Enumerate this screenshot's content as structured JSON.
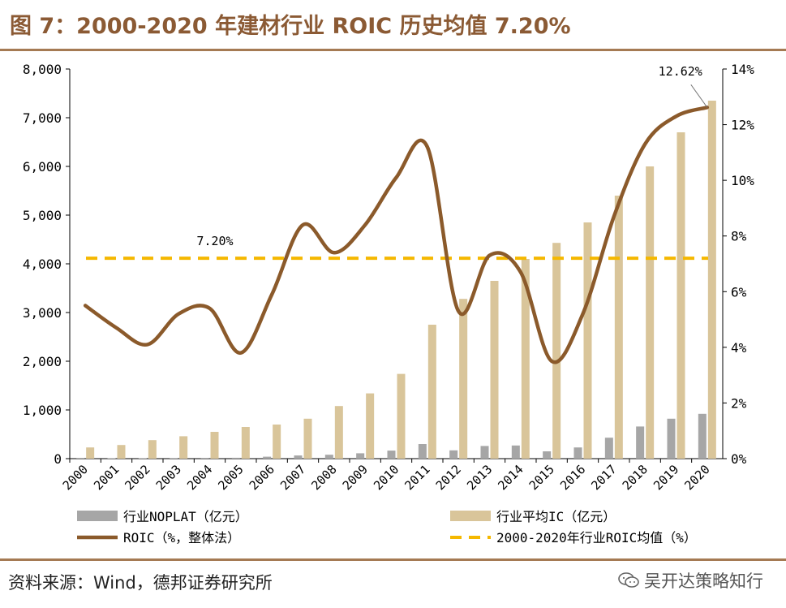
{
  "title": "图 7：2000-2020 年建材行业 ROIC 历史均值 7.20%",
  "footer": {
    "source": "资料来源：Wind，德邦证券研究所",
    "watermark": "吴开达策略知行"
  },
  "colors": {
    "nopat": "#a6a6a6",
    "ic": "#d9c59a",
    "roic": "#8b5a2b",
    "avg": "#f5b800",
    "rule": "#a57a53"
  },
  "chart_data": {
    "type": "bar+line",
    "categories": [
      "2000",
      "2001",
      "2002",
      "2003",
      "2004",
      "2005",
      "2006",
      "2007",
      "2008",
      "2009",
      "2010",
      "2011",
      "2012",
      "2013",
      "2014",
      "2015",
      "2016",
      "2017",
      "2018",
      "2019",
      "2020"
    ],
    "series": [
      {
        "name": "行业NOPLAT（亿元）",
        "axis": "left",
        "type": "bar",
        "values": [
          5,
          8,
          10,
          12,
          15,
          18,
          40,
          65,
          80,
          110,
          165,
          300,
          170,
          260,
          270,
          150,
          230,
          430,
          660,
          820,
          920
        ]
      },
      {
        "name": "行业平均IC（亿元）",
        "axis": "left",
        "type": "bar",
        "values": [
          230,
          280,
          380,
          460,
          550,
          650,
          700,
          820,
          1080,
          1340,
          1740,
          2750,
          3280,
          3650,
          4100,
          4430,
          4850,
          5400,
          6000,
          6700,
          7350
        ]
      },
      {
        "name": "ROIC（%，整体法）",
        "axis": "right",
        "type": "line",
        "values": [
          5.5,
          4.7,
          4.1,
          5.2,
          5.4,
          3.8,
          5.9,
          8.4,
          7.4,
          8.4,
          10.1,
          11.2,
          5.3,
          7.3,
          6.7,
          3.5,
          5.2,
          8.7,
          11.3,
          12.3,
          12.62
        ]
      },
      {
        "name": "2000-2020年行业ROIC均值（%）",
        "axis": "right",
        "type": "dashed-line",
        "value": 7.2
      }
    ],
    "left_axis": {
      "min": 0,
      "max": 8000,
      "ticks": [
        "0",
        "1,000",
        "2,000",
        "3,000",
        "4,000",
        "5,000",
        "6,000",
        "7,000",
        "8,000"
      ]
    },
    "right_axis": {
      "min": 0,
      "max": 14,
      "ticks": [
        "0%",
        "2%",
        "4%",
        "6%",
        "8%",
        "10%",
        "12%",
        "14%"
      ]
    },
    "annotations": {
      "avg_label": "7.20%",
      "last_label": "12.62%"
    },
    "legend_position": "bottom"
  }
}
